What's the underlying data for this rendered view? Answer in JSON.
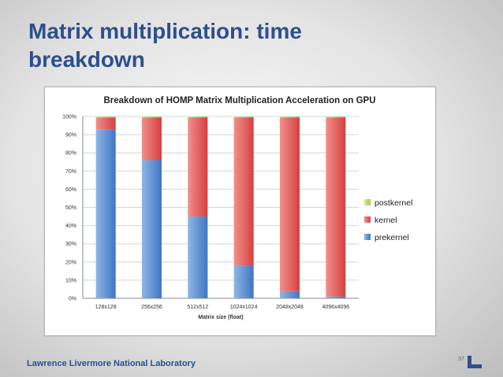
{
  "slide": {
    "title": "Matrix multiplication: time breakdown",
    "footer": "Lawrence Livermore National Laboratory",
    "page_number": "37"
  },
  "colors": {
    "title": "#2d4f8c",
    "prekernel": "#5b8fd0",
    "kernel": "#e05a5a",
    "postkernel": "#a8d878"
  },
  "chart_data": {
    "type": "bar",
    "stacked": true,
    "title": "Breakdown of HOMP Matrix Multiplication Acceleration on GPU",
    "xlabel": "Matrix size (float)",
    "ylabel": "",
    "ylim": [
      0,
      100
    ],
    "yticks": [
      "0%",
      "10%",
      "20%",
      "30%",
      "40%",
      "50%",
      "60%",
      "70%",
      "80%",
      "90%",
      "100%"
    ],
    "categories": [
      "128x128",
      "256x256",
      "512x512",
      "1024x1024",
      "2048x2048",
      "4096x4096"
    ],
    "series": [
      {
        "name": "prekernel",
        "values": [
          93,
          76,
          45,
          18,
          4,
          1
        ]
      },
      {
        "name": "kernel",
        "values": [
          6.5,
          23.5,
          54.5,
          81.5,
          95.5,
          98.5
        ]
      },
      {
        "name": "postkernel",
        "values": [
          0.5,
          0.5,
          0.5,
          0.5,
          0.5,
          0.5
        ]
      }
    ],
    "legend_order": [
      "postkernel",
      "kernel",
      "prekernel"
    ],
    "legend_position": "right",
    "grid": true
  }
}
